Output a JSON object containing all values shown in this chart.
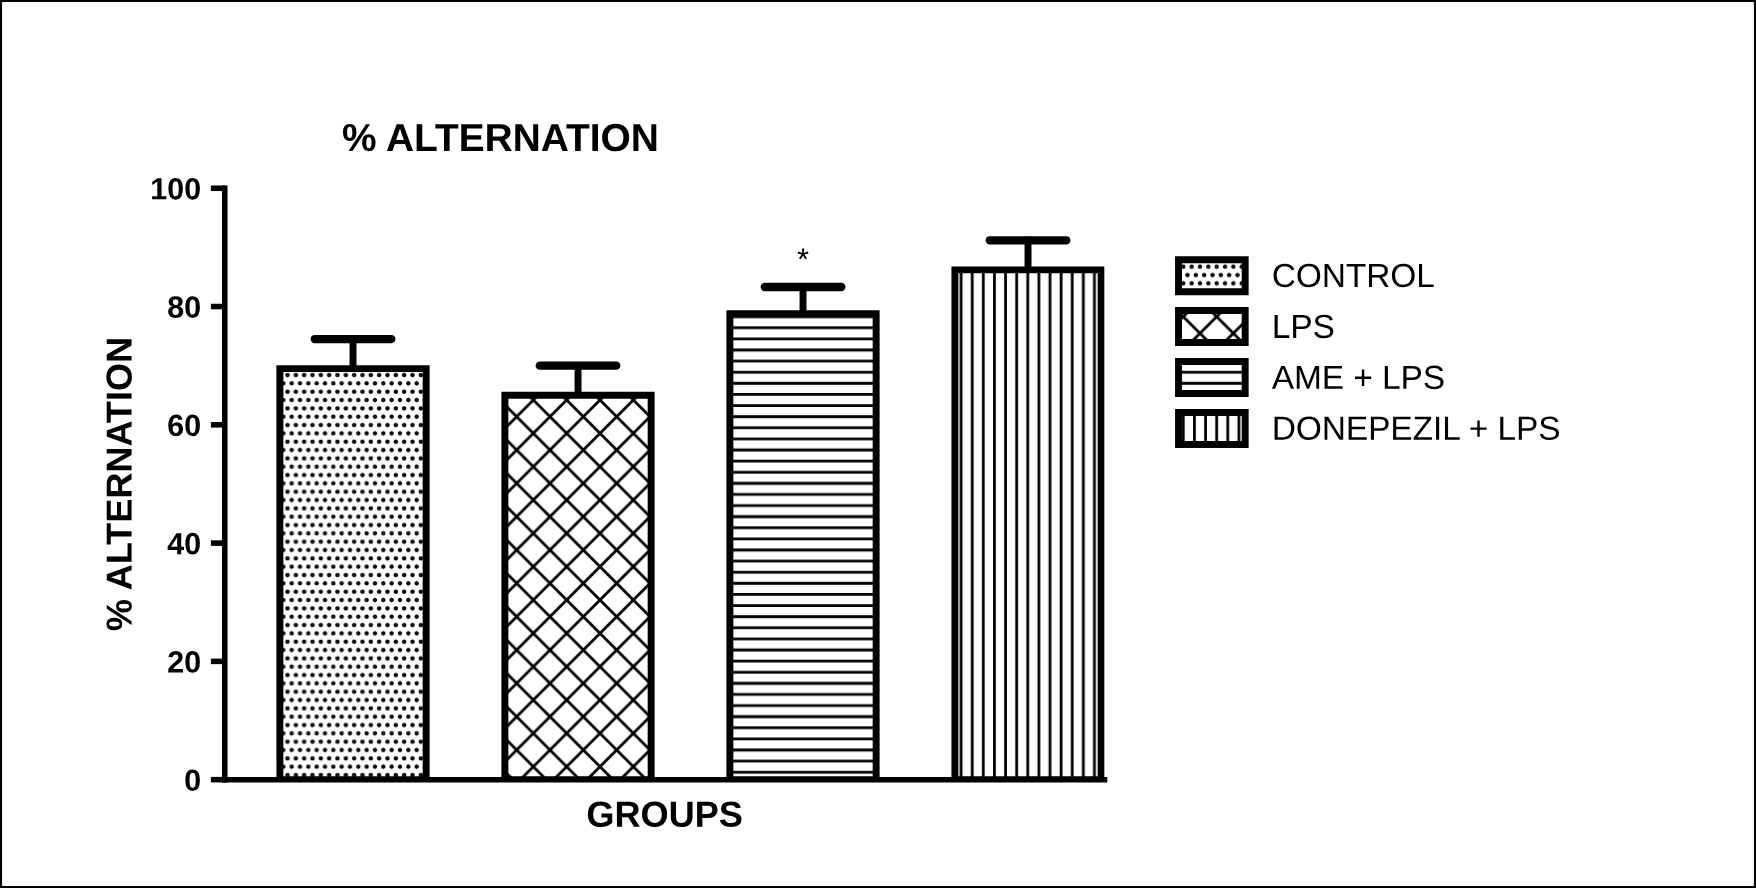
{
  "chart_data": {
    "type": "bar",
    "title": "% ALTERNATION",
    "xlabel": "GROUPS",
    "ylabel": "% ALTERNATION",
    "categories": [
      null,
      null,
      null,
      null
    ],
    "series": [
      {
        "name": "CONTROL",
        "color": "#000000",
        "values": [
          69.5,
          null,
          null,
          null
        ],
        "errors": [
          [
            69.5,
            74.5
          ],
          null,
          null,
          null
        ]
      },
      {
        "name": "LPS",
        "color": "#000000",
        "values": [
          null,
          65,
          null,
          null
        ],
        "errors": [
          null,
          [
            65,
            70
          ],
          null,
          null
        ]
      },
      {
        "name": "AME + LPS",
        "color": "#000000",
        "values": [
          null,
          null,
          78.8,
          null
        ],
        "errors": [
          null,
          null,
          [
            78.8,
            83.3
          ],
          null
        ]
      },
      {
        "name": "DONEPEZIL + LPS",
        "color": "#000000",
        "values": [
          null,
          null,
          null,
          86.2
        ],
        "errors": [
          null,
          null,
          null,
          [
            86.2,
            91.2
          ]
        ]
      }
    ],
    "annotations": [
      "*"
    ],
    "ylim": [
      0,
      100
    ],
    "yticks": [
      0,
      20,
      40,
      60,
      80,
      100
    ],
    "grid": false,
    "legend": "right"
  }
}
